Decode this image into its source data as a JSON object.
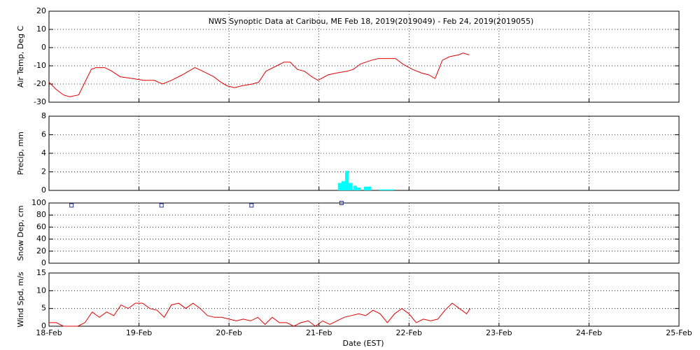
{
  "chart_data": [
    {
      "type": "line",
      "title": "NWS Synoptic Data at Caribou, ME   Feb 18, 2019(2019049) - Feb 24, 2019(2019055)",
      "ylabel": "Air Temp, Deg C",
      "xlim": [
        0,
        7
      ],
      "xticks": [
        0,
        1,
        2,
        3,
        4,
        5,
        6,
        7
      ],
      "ylim": [
        -30,
        20
      ],
      "yticks": [
        -30,
        -20,
        -10,
        0,
        10,
        20
      ],
      "grid": true,
      "series": [
        {
          "color": "#e00000",
          "x": [
            0,
            0.08,
            0.16,
            0.23,
            0.33,
            0.39,
            0.47,
            0.52,
            0.62,
            0.7,
            0.79,
            0.93,
            1.05,
            1.17,
            1.26,
            1.36,
            1.48,
            1.62,
            1.71,
            1.83,
            1.91,
            1.98,
            2.06,
            2.14,
            2.26,
            2.33,
            2.41,
            2.53,
            2.61,
            2.68,
            2.76,
            2.84,
            2.92,
            2.99,
            3.1,
            3.19,
            3.31,
            3.38,
            3.46,
            3.58,
            3.66,
            3.85,
            3.93,
            4.04,
            4.14,
            4.22,
            4.29,
            4.37,
            4.45,
            4.55,
            4.6,
            4.67
          ],
          "values": [
            -19,
            -23,
            -26,
            -27,
            -26,
            -20,
            -12,
            -11,
            -11,
            -13,
            -16,
            -17,
            -18,
            -18,
            -20,
            -18,
            -15,
            -11,
            -13,
            -16,
            -19,
            -21,
            -22,
            -21,
            -20,
            -19,
            -13,
            -10,
            -8,
            -8,
            -12,
            -13,
            -16,
            -18,
            -15,
            -14,
            -13,
            -12,
            -9,
            -7,
            -6,
            -6,
            -9,
            -12,
            -14,
            -15,
            -17,
            -7,
            -5,
            -4,
            -3,
            -4
          ]
        }
      ]
    },
    {
      "type": "bar",
      "ylabel": "Precip, mm",
      "xlim": [
        0,
        7
      ],
      "xticks": [
        0,
        1,
        2,
        3,
        4,
        5,
        6,
        7
      ],
      "ylim": [
        0,
        8
      ],
      "yticks": [
        0,
        2,
        4,
        6,
        8
      ],
      "grid": true,
      "series": [
        {
          "color": "#00ffff",
          "x": [
            3.21,
            3.25,
            3.29,
            3.33,
            3.38,
            3.42,
            3.5,
            3.54,
            3.67,
            3.71,
            3.75,
            3.79
          ],
          "values": [
            0.8,
            1.0,
            2.1,
            0.8,
            0.5,
            0.3,
            0.4,
            0.4,
            0.1,
            0.1,
            0.1,
            0.1
          ]
        }
      ]
    },
    {
      "type": "scatter",
      "ylabel": "Snow Dep, cm",
      "xlim": [
        0,
        7
      ],
      "xticks": [
        0,
        1,
        2,
        3,
        4,
        5,
        6,
        7
      ],
      "ylim": [
        0,
        100
      ],
      "yticks": [
        0,
        20,
        40,
        60,
        80,
        100
      ],
      "grid": true,
      "series": [
        {
          "color": "#2030a0",
          "x": [
            0.25,
            1.25,
            2.25,
            3.25
          ],
          "values": [
            96,
            96,
            96,
            100
          ]
        }
      ]
    },
    {
      "type": "line",
      "ylabel": "Wind Spd, m/s",
      "xlabel": "Date (EST)",
      "xlim": [
        0,
        7
      ],
      "xticks": [
        {
          "value": 0,
          "label": "18-Feb"
        },
        {
          "value": 1,
          "label": "19-Feb"
        },
        {
          "value": 2,
          "label": "20-Feb"
        },
        {
          "value": 3,
          "label": "21-Feb"
        },
        {
          "value": 4,
          "label": "22-Feb"
        },
        {
          "value": 5,
          "label": "23-Feb"
        },
        {
          "value": 6,
          "label": "24-Feb"
        },
        {
          "value": 7,
          "label": "25-Feb"
        }
      ],
      "ylim": [
        0,
        15
      ],
      "yticks": [
        0,
        5,
        10,
        15
      ],
      "grid": true,
      "series": [
        {
          "color": "#e00000",
          "x": [
            0,
            0.08,
            0.16,
            0.24,
            0.32,
            0.4,
            0.48,
            0.56,
            0.64,
            0.72,
            0.8,
            0.88,
            0.96,
            1.04,
            1.12,
            1.2,
            1.28,
            1.36,
            1.44,
            1.52,
            1.6,
            1.68,
            1.76,
            1.84,
            1.92,
            2,
            2.08,
            2.16,
            2.24,
            2.32,
            2.4,
            2.48,
            2.56,
            2.64,
            2.72,
            2.8,
            2.88,
            2.96,
            3.04,
            3.12,
            3.2,
            3.28,
            3.36,
            3.44,
            3.52,
            3.6,
            3.68,
            3.76,
            3.84,
            3.92,
            4,
            4.08,
            4.16,
            4.24,
            4.32,
            4.4,
            4.48,
            4.56,
            4.64,
            4.68
          ],
          "values": [
            1,
            1,
            0,
            0,
            0,
            1,
            4,
            2.5,
            4,
            3,
            6,
            5,
            6.5,
            6.5,
            5,
            4.5,
            2.5,
            6,
            6.5,
            5,
            6.5,
            5,
            3,
            2.5,
            2.5,
            2,
            1.5,
            2,
            1.5,
            2.5,
            0.5,
            2.5,
            1,
            1,
            0,
            1,
            1.5,
            0,
            1.5,
            0.5,
            1.5,
            2.5,
            3,
            3.5,
            3,
            4.5,
            3.5,
            1,
            3.5,
            5,
            3.5,
            1,
            2,
            1.5,
            2,
            4.5,
            6.5,
            5,
            3.5,
            5
          ]
        }
      ]
    }
  ]
}
